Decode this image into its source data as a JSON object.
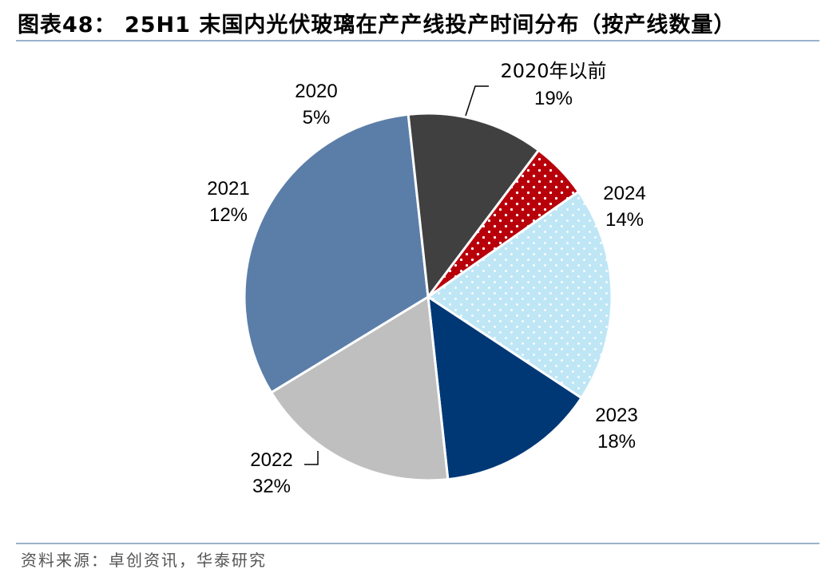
{
  "header": {
    "title": "图表48： 25H1 末国内光伏玻璃在产产线投产时间分布（按产线数量）"
  },
  "footer": {
    "source": "资料来源：卓创资讯，华泰研究"
  },
  "chart_data": {
    "type": "pie",
    "title": "图表48： 25H1 末国内光伏玻璃在产产线投产时间分布（按产线数量）",
    "unit": "%",
    "slices": [
      {
        "label": "2020年以前",
        "value": 19,
        "display": "19%",
        "color": "#bfe6f5",
        "pattern": "dots-white"
      },
      {
        "label": "2024",
        "value": 14,
        "display": "14%",
        "color": "#003876"
      },
      {
        "label": "2023",
        "value": 18,
        "display": "18%",
        "color": "#bfbfbf"
      },
      {
        "label": "2022",
        "value": 32,
        "display": "32%",
        "color": "#5b7ea8"
      },
      {
        "label": "2021",
        "value": 12,
        "display": "12%",
        "color": "#404040"
      },
      {
        "label": "2020",
        "value": 5,
        "display": "5%",
        "color": "#b8000a",
        "pattern": "dots-white"
      }
    ],
    "start_angle_deg": 55,
    "direction": "clockwise"
  }
}
